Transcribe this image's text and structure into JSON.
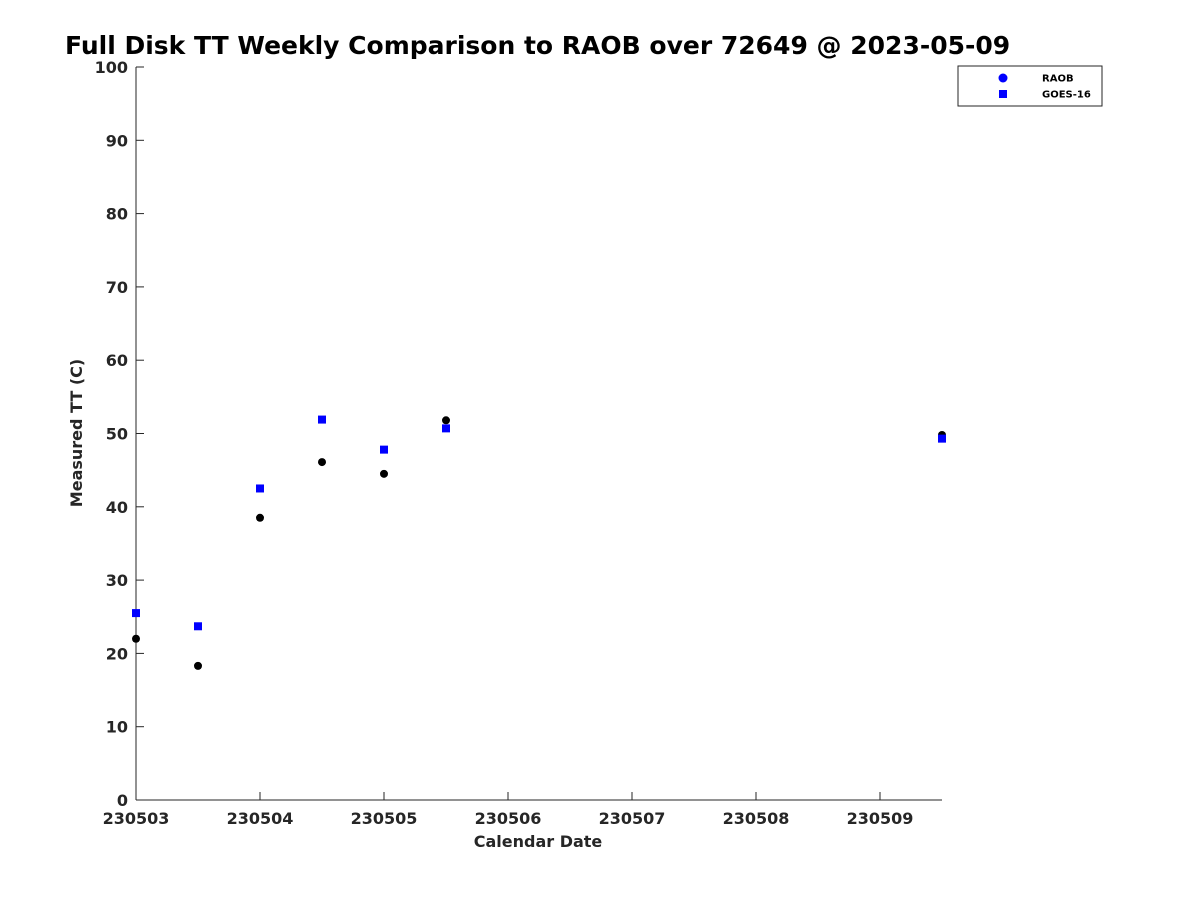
{
  "chart_data": {
    "type": "scatter",
    "title": "Full Disk TT Weekly Comparison to RAOB over 72649 @ 2023-05-09",
    "xlabel": "Calendar Date",
    "ylabel": "Measured TT (C)",
    "xlim": [
      "2023-05-03",
      "2023-05-09 12:00"
    ],
    "ylim": [
      0,
      100
    ],
    "x_ticks": [
      {
        "x": "2023-05-03",
        "label": "230503"
      },
      {
        "x": "2023-05-04",
        "label": "230504"
      },
      {
        "x": "2023-05-05",
        "label": "230505"
      },
      {
        "x": "2023-05-06",
        "label": "230506"
      },
      {
        "x": "2023-05-07",
        "label": "230507"
      },
      {
        "x": "2023-05-08",
        "label": "230508"
      },
      {
        "x": "2023-05-09",
        "label": "230509"
      }
    ],
    "y_ticks": [
      0,
      10,
      20,
      30,
      40,
      50,
      60,
      70,
      80,
      90,
      100
    ],
    "grid": false,
    "legend_position": "top-right",
    "series": [
      {
        "name": "RAOB",
        "marker": "circle",
        "color": "#000000",
        "legend_color": "#0000ff",
        "points": [
          {
            "x": "2023-05-03 00:00",
            "y": 22.0
          },
          {
            "x": "2023-05-03 12:00",
            "y": 18.3
          },
          {
            "x": "2023-05-04 00:00",
            "y": 38.5
          },
          {
            "x": "2023-05-04 12:00",
            "y": 46.1
          },
          {
            "x": "2023-05-05 00:00",
            "y": 44.5
          },
          {
            "x": "2023-05-05 12:00",
            "y": 51.8
          },
          {
            "x": "2023-05-09 12:00",
            "y": 49.8
          }
        ]
      },
      {
        "name": "GOES-16",
        "marker": "square",
        "color": "#0000ff",
        "points": [
          {
            "x": "2023-05-03 00:00",
            "y": 25.5
          },
          {
            "x": "2023-05-03 12:00",
            "y": 23.7
          },
          {
            "x": "2023-05-04 00:00",
            "y": 42.5
          },
          {
            "x": "2023-05-04 12:00",
            "y": 51.9
          },
          {
            "x": "2023-05-05 00:00",
            "y": 47.8
          },
          {
            "x": "2023-05-05 12:00",
            "y": 50.7
          },
          {
            "x": "2023-05-09 12:00",
            "y": 49.3
          }
        ]
      }
    ]
  }
}
